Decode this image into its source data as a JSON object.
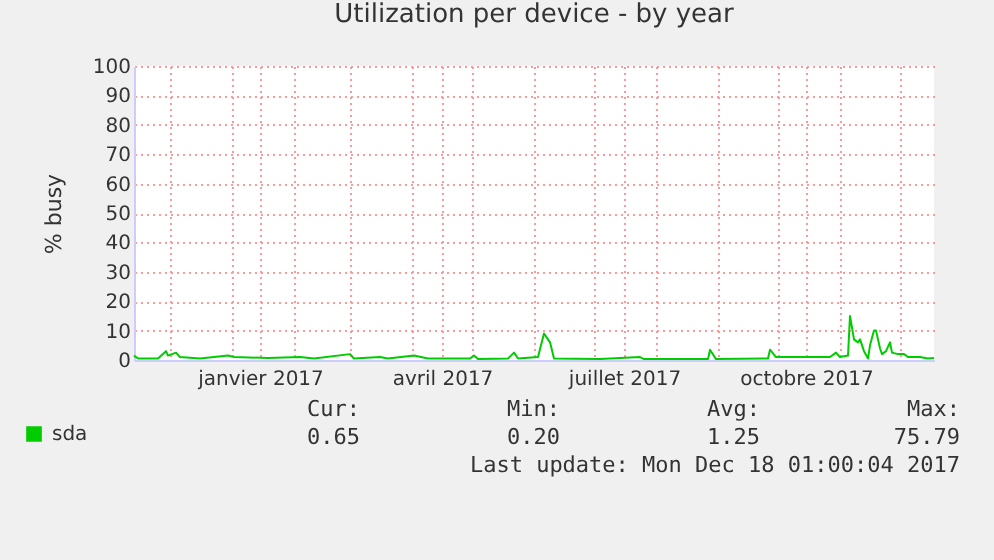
{
  "chart_data": {
    "type": "line",
    "title": "Utilization per device - by year",
    "ylabel": "% busy",
    "x": [
      "2016-11-13",
      "2016-11-15",
      "2016-11-25",
      "2016-11-29",
      "2016-11-30",
      "2016-12-02",
      "2016-12-04",
      "2016-12-06",
      "2016-12-16",
      "2016-12-30",
      "2017-01-02",
      "2017-01-19",
      "2017-02-04",
      "2017-02-11",
      "2017-03-01",
      "2017-03-03",
      "2017-03-16",
      "2017-03-20",
      "2017-04-02",
      "2017-04-09",
      "2017-04-30",
      "2017-05-02",
      "2017-05-04",
      "2017-05-19",
      "2017-05-22",
      "2017-05-24",
      "2017-06-03",
      "2017-06-06",
      "2017-06-08",
      "2017-06-09",
      "2017-06-11",
      "2017-07-04",
      "2017-07-24",
      "2017-07-26",
      "2017-08-27",
      "2017-08-28",
      "2017-08-31",
      "2017-09-26",
      "2017-09-27",
      "2017-09-30",
      "2017-10-27",
      "2017-10-30",
      "2017-11-01",
      "2017-11-05",
      "2017-11-06",
      "2017-11-08",
      "2017-11-10",
      "2017-11-11",
      "2017-11-13",
      "2017-11-15",
      "2017-11-16",
      "2017-11-18",
      "2017-11-19",
      "2017-11-21",
      "2017-11-22",
      "2017-11-24",
      "2017-11-26",
      "2017-11-27",
      "2017-11-30",
      "2017-12-03",
      "2017-12-05",
      "2017-12-11",
      "2017-12-15",
      "2017-12-18"
    ],
    "series": [
      {
        "name": "sda",
        "color": "#00cc00",
        "values": [
          1.5,
          0.5,
          0.5,
          3,
          1.5,
          2,
          2.5,
          1,
          0.5,
          1.5,
          1,
          0.7,
          1,
          0.5,
          2,
          0.5,
          1,
          0.5,
          1.5,
          0.5,
          0.5,
          1.5,
          0.3,
          0.5,
          2.5,
          0.5,
          1,
          9,
          7,
          6,
          0.5,
          0.3,
          1,
          0.3,
          0.3,
          3.5,
          0.3,
          0.5,
          3.5,
          1,
          1,
          2.5,
          1,
          1.5,
          15,
          7,
          6,
          7,
          3,
          0.5,
          5,
          10,
          10,
          4,
          2,
          3,
          6,
          2.5,
          2,
          2,
          1,
          1,
          0.5,
          0.7
        ]
      }
    ],
    "xlim": [
      "2016-11-13",
      "2017-12-18"
    ],
    "xticks": [
      {
        "value": "2016-12-01",
        "label": null
      },
      {
        "value": "2017-01-01",
        "label": null
      },
      {
        "value": "2017-01-15",
        "label": "janvier 2017"
      },
      {
        "value": "2017-02-01",
        "label": null
      },
      {
        "value": "2017-03-01",
        "label": null
      },
      {
        "value": "2017-04-01",
        "label": null
      },
      {
        "value": "2017-04-16",
        "label": "avril 2017"
      },
      {
        "value": "2017-05-01",
        "label": null
      },
      {
        "value": "2017-06-01",
        "label": null
      },
      {
        "value": "2017-07-01",
        "label": null
      },
      {
        "value": "2017-07-16",
        "label": "juillet 2017"
      },
      {
        "value": "2017-08-01",
        "label": null
      },
      {
        "value": "2017-09-01",
        "label": null
      },
      {
        "value": "2017-10-01",
        "label": null
      },
      {
        "value": "2017-10-15",
        "label": "octobre 2017"
      },
      {
        "value": "2017-11-01",
        "label": null
      },
      {
        "value": "2017-12-01",
        "label": null
      }
    ],
    "ylim": [
      0,
      100
    ],
    "yticks": [
      0,
      10,
      20,
      30,
      40,
      50,
      60,
      70,
      80,
      90,
      100
    ],
    "grid": true,
    "legend": "bottom",
    "marker": "none",
    "line_style": "solid",
    "annotations": [
      "Cur:",
      "Min:",
      "Avg:",
      "Max:",
      "0.65",
      "0.20",
      "1.25",
      "75.79",
      "Last update: Mon Dec 18 01:00:04 2017"
    ]
  }
}
